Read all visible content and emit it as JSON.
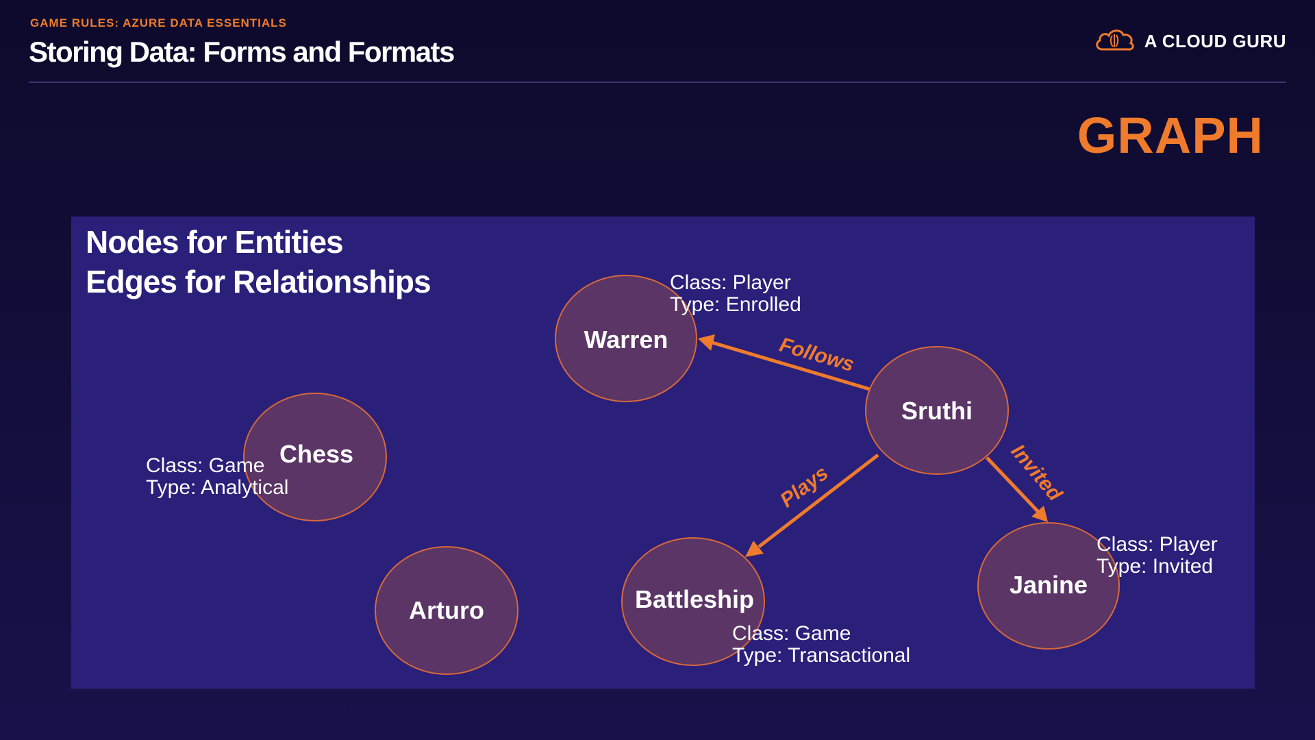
{
  "header": {
    "eyebrow": "GAME RULES: AZURE DATA ESSENTIALS",
    "title": "Storing Data: Forms and Formats",
    "brand": "A CLOUD GURU"
  },
  "section_label": "GRAPH",
  "panel": {
    "heading_line1": "Nodes for Entities",
    "heading_line2": "Edges for Relationships"
  },
  "nodes": {
    "warren": {
      "label": "Warren",
      "class": "Class: Player",
      "type": "Type: Enrolled"
    },
    "sruthi": {
      "label": "Sruthi"
    },
    "chess": {
      "label": "Chess",
      "class": "Class: Game",
      "type": "Type: Analytical"
    },
    "arturo": {
      "label": "Arturo"
    },
    "battleship": {
      "label": "Battleship",
      "class": "Class: Game",
      "type": "Type: Transactional"
    },
    "janine": {
      "label": "Janine",
      "class": "Class: Player",
      "type": "Type: Invited"
    }
  },
  "edges": {
    "follows": "Follows",
    "plays": "Plays",
    "invited": "Invited"
  },
  "colors": {
    "accent": "#f07b2c",
    "panel": "#2a207a",
    "node_fill": "#5a3565",
    "node_stroke": "#d9683a"
  }
}
